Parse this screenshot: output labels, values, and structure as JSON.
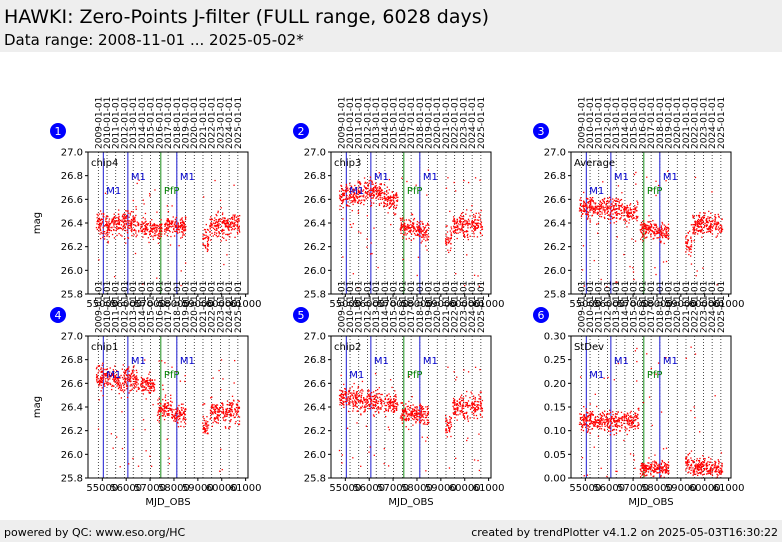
{
  "page": {
    "title": "HAWKI: Zero-Points J-filter (FULL range, 6028 days)",
    "subtitle": "Data range: 2008-11-01 ... 2025-05-02*",
    "footer_left": "powered by QC: www.eso.org/HC",
    "footer_right": "created by trendPlotter v4.1.2 on 2025-05-03T16:30:22"
  },
  "colors": {
    "points": "#ff0000",
    "m1": "#0000cc",
    "pfp": "#008000",
    "badge": "#0000ff",
    "header_bg": "#eeeeee"
  },
  "chart_data": {
    "type": "scatter",
    "x_label": "MJD_OBS",
    "y_label": "mag",
    "xlim": [
      54400,
      61100
    ],
    "x_ticks": [
      55000,
      56000,
      57000,
      58000,
      59000,
      60000,
      61000
    ],
    "x_tick_labels": [
      "55000",
      "56000",
      "57000",
      "58000",
      "59000",
      "60000",
      "61000"
    ],
    "top_date_labels": [
      "2009-01-01",
      "2010-01-01",
      "2011-01-01",
      "2012-01-01",
      "2013-01-01",
      "2014-01-01",
      "2015-01-01",
      "2016-01-01",
      "2017-01-01",
      "2018-01-01",
      "2019-01-01",
      "2020-01-01",
      "2021-01-01",
      "2022-01-01",
      "2023-01-01",
      "2024-01-01",
      "2025-01-01"
    ],
    "year_lines_mjd": [
      54832,
      55197,
      55562,
      55927,
      56293,
      56658,
      57023,
      57388,
      57754,
      58119,
      58484,
      58849,
      59215,
      59580,
      59945,
      60310,
      60676
    ],
    "events": [
      {
        "label": "M1",
        "mjd": 55040,
        "type": "m1",
        "row": 1
      },
      {
        "label": "M1",
        "mjd": 56070,
        "type": "m1",
        "row": 0
      },
      {
        "label": "PfP",
        "mjd": 57450,
        "type": "pfp",
        "row": 1
      },
      {
        "label": "M1",
        "mjd": 58120,
        "type": "m1",
        "row": 0
      }
    ],
    "panels": [
      {
        "number": "1",
        "name": "chip4",
        "ylim": [
          25.8,
          27.0
        ],
        "yticks": [
          "27.0",
          "26.8",
          "26.6",
          "26.4",
          "26.2",
          "26.0",
          "25.8"
        ],
        "show_ylabel": true,
        "show_xlabel": false,
        "segments": [
          [
            54750,
            55000,
            26.4,
            0.05
          ],
          [
            55000,
            55600,
            26.38,
            0.05
          ],
          [
            55600,
            56550,
            26.4,
            0.05
          ],
          [
            56600,
            57200,
            26.35,
            0.04
          ],
          [
            57200,
            57500,
            26.33,
            0.04
          ],
          [
            57600,
            58500,
            26.37,
            0.04
          ],
          [
            59200,
            59450,
            26.26,
            0.05
          ],
          [
            59500,
            60050,
            26.38,
            0.05
          ],
          [
            60050,
            60750,
            26.38,
            0.05
          ]
        ],
        "outlier_band": [
          25.85,
          26.8
        ]
      },
      {
        "number": "2",
        "name": "chip3",
        "ylim": [
          25.8,
          27.0
        ],
        "yticks": [
          "27.0",
          "26.8",
          "26.6",
          "26.4",
          "26.2",
          "26.0",
          "25.8"
        ],
        "show_ylabel": false,
        "show_xlabel": false,
        "segments": [
          [
            54750,
            55600,
            26.63,
            0.05
          ],
          [
            55600,
            56550,
            26.65,
            0.05
          ],
          [
            56600,
            57200,
            26.6,
            0.05
          ],
          [
            57300,
            57900,
            26.36,
            0.04
          ],
          [
            57900,
            58500,
            26.33,
            0.04
          ],
          [
            59200,
            59450,
            26.24,
            0.05
          ],
          [
            59500,
            60750,
            26.38,
            0.05
          ]
        ],
        "outlier_band": [
          25.85,
          26.85
        ]
      },
      {
        "number": "3",
        "name": "Average",
        "ylim": [
          25.8,
          27.0
        ],
        "yticks": [
          "27.0",
          "26.8",
          "26.6",
          "26.4",
          "26.2",
          "26.0",
          "25.8"
        ],
        "show_ylabel": false,
        "show_xlabel": false,
        "segments": [
          [
            54750,
            55600,
            26.53,
            0.05
          ],
          [
            55600,
            56550,
            26.52,
            0.05
          ],
          [
            56600,
            57200,
            26.48,
            0.04
          ],
          [
            57300,
            57900,
            26.35,
            0.04
          ],
          [
            57900,
            58500,
            26.32,
            0.04
          ],
          [
            59200,
            59450,
            26.22,
            0.05
          ],
          [
            59500,
            60750,
            26.38,
            0.05
          ]
        ],
        "outlier_band": [
          25.85,
          26.85
        ]
      },
      {
        "number": "4",
        "name": "chip1",
        "ylim": [
          25.8,
          27.0
        ],
        "yticks": [
          "27.0",
          "26.8",
          "26.6",
          "26.4",
          "26.2",
          "26.0",
          "25.8"
        ],
        "show_ylabel": true,
        "show_xlabel": true,
        "segments": [
          [
            54750,
            55600,
            26.65,
            0.05
          ],
          [
            55600,
            56550,
            26.62,
            0.05
          ],
          [
            56600,
            57200,
            26.58,
            0.04
          ],
          [
            57300,
            57900,
            26.38,
            0.04
          ],
          [
            57900,
            58500,
            26.33,
            0.04
          ],
          [
            59200,
            59450,
            26.22,
            0.05
          ],
          [
            59500,
            60750,
            26.36,
            0.05
          ]
        ],
        "outlier_band": [
          25.85,
          26.8
        ]
      },
      {
        "number": "5",
        "name": "chip2",
        "ylim": [
          25.8,
          27.0
        ],
        "yticks": [
          "27.0",
          "26.8",
          "26.6",
          "26.4",
          "26.2",
          "26.0",
          "25.8"
        ],
        "show_ylabel": false,
        "show_xlabel": true,
        "segments": [
          [
            54750,
            55600,
            26.47,
            0.05
          ],
          [
            55600,
            56550,
            26.45,
            0.05
          ],
          [
            56600,
            57200,
            26.42,
            0.04
          ],
          [
            57300,
            57900,
            26.34,
            0.04
          ],
          [
            57900,
            58500,
            26.34,
            0.04
          ],
          [
            59200,
            59450,
            26.25,
            0.05
          ],
          [
            59500,
            60750,
            26.4,
            0.05
          ]
        ],
        "outlier_band": [
          25.85,
          26.8
        ]
      },
      {
        "number": "6",
        "name": "StDev",
        "ylim": [
          0.0,
          0.3
        ],
        "yticks": [
          "0.30",
          "0.25",
          "0.20",
          "0.15",
          "0.10",
          "0.05",
          "0.00"
        ],
        "show_ylabel": false,
        "show_xlabel": true,
        "segments": [
          [
            54750,
            55600,
            0.12,
            0.012
          ],
          [
            55600,
            56550,
            0.12,
            0.012
          ],
          [
            56600,
            57250,
            0.12,
            0.01
          ],
          [
            57300,
            57900,
            0.02,
            0.008
          ],
          [
            57900,
            58500,
            0.02,
            0.008
          ],
          [
            59200,
            59450,
            0.03,
            0.01
          ],
          [
            59500,
            60750,
            0.02,
            0.01
          ]
        ],
        "outlier_band": [
          0.0,
          0.28
        ]
      }
    ]
  }
}
